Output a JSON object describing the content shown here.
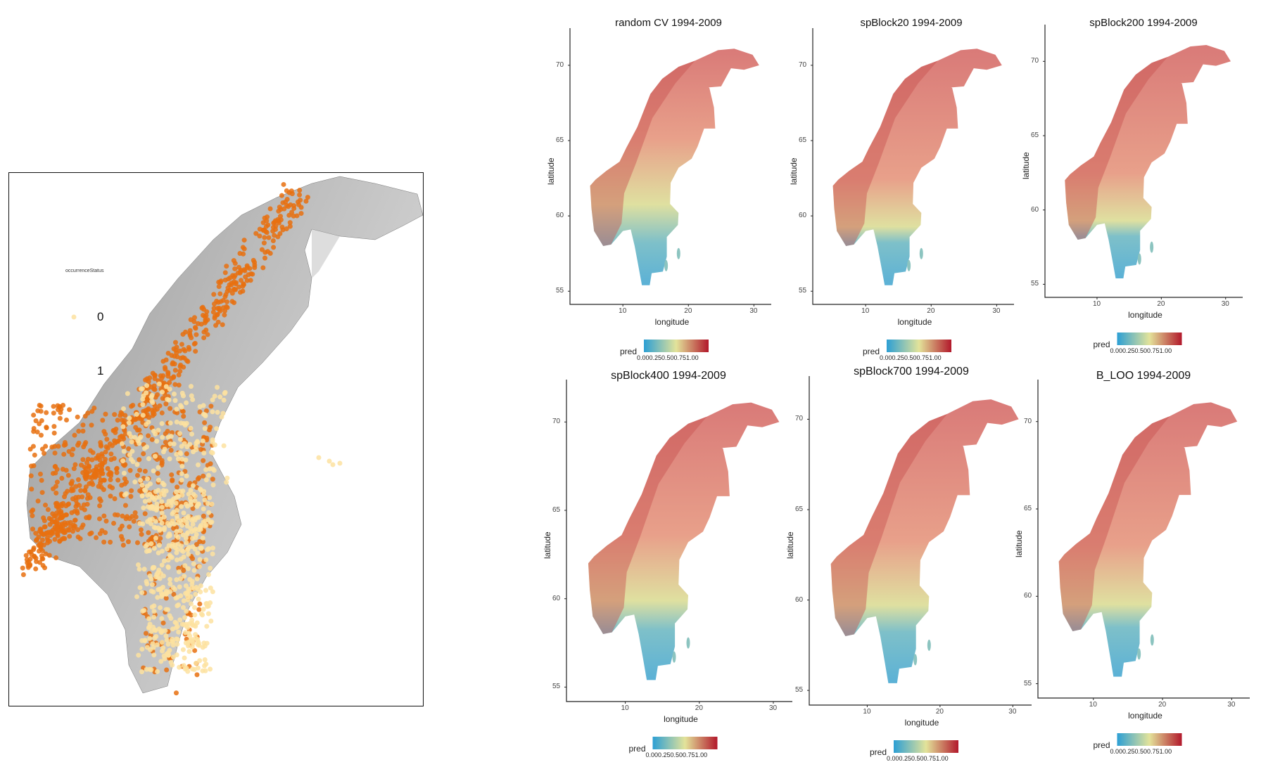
{
  "left_map": {
    "legend_title": "occurrenceStatus",
    "legend_levels": [
      "0",
      "1"
    ],
    "colors": {
      "absent": "#fde2a0",
      "present": "#e8700f"
    }
  },
  "panels": [
    {
      "title": "random CV 1994-2009"
    },
    {
      "title": "spBlock20 1994-2009"
    },
    {
      "title": "spBlock200 1994-2009"
    },
    {
      "title": "spBlock400 1994-2009"
    },
    {
      "title": "spBlock700 1994-2009"
    },
    {
      "title": "B_LOO 1994-2009"
    }
  ],
  "axes": {
    "xlabel": "longitude",
    "ylabel": "latitude",
    "xticks": [
      "10",
      "20",
      "30"
    ],
    "yticks": [
      "70",
      "65",
      "60",
      "55"
    ]
  },
  "legend": {
    "title": "pred",
    "ticks": "0.000.250.500.751.00",
    "colors": [
      "#2c9fd4",
      "#e3e39a",
      "#b2182b"
    ]
  }
}
